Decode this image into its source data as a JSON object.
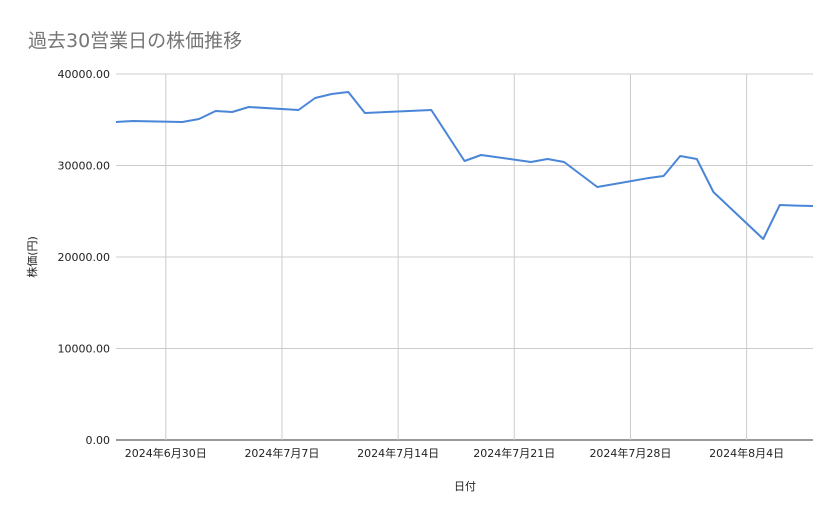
{
  "chart_data": {
    "type": "line",
    "title": "過去30営業日の株価推移",
    "xlabel": "日付",
    "ylabel": "株価(円)",
    "ylim": [
      0,
      40000
    ],
    "xlim": [
      "2024-06-27",
      "2024-08-08"
    ],
    "yticks": [
      "0.00",
      "10000.00",
      "20000.00",
      "30000.00",
      "40000.00"
    ],
    "xticks": [
      {
        "date": "2024-06-30",
        "label": "2024年6月30日"
      },
      {
        "date": "2024-07-07",
        "label": "2024年7月7日"
      },
      {
        "date": "2024-07-14",
        "label": "2024年7月14日"
      },
      {
        "date": "2024-07-21",
        "label": "2024年7月21日"
      },
      {
        "date": "2024-07-28",
        "label": "2024年7月28日"
      },
      {
        "date": "2024-08-04",
        "label": "2024年8月4日"
      }
    ],
    "grid": true,
    "line_color": "#4a86d8",
    "series": [
      {
        "x": [
          "2024-06-27",
          "2024-06-28",
          "2024-07-01",
          "2024-07-02",
          "2024-07-03",
          "2024-07-04",
          "2024-07-05",
          "2024-07-08",
          "2024-07-09",
          "2024-07-10",
          "2024-07-11",
          "2024-07-12",
          "2024-07-16",
          "2024-07-18",
          "2024-07-19",
          "2024-07-22",
          "2024-07-23",
          "2024-07-24",
          "2024-07-26",
          "2024-07-29",
          "2024-07-30",
          "2024-07-31",
          "2024-08-01",
          "2024-08-02",
          "2024-08-05",
          "2024-08-06",
          "2024-08-07",
          "2024-08-08"
        ],
        "values": [
          34750,
          34860,
          34750,
          35080,
          35960,
          35850,
          36390,
          36070,
          37380,
          37810,
          38030,
          35740,
          36070,
          30490,
          31150,
          30380,
          30710,
          30380,
          27650,
          28600,
          28850,
          31040,
          30710,
          27100,
          21970,
          25680,
          25620,
          25570
        ]
      }
    ]
  }
}
